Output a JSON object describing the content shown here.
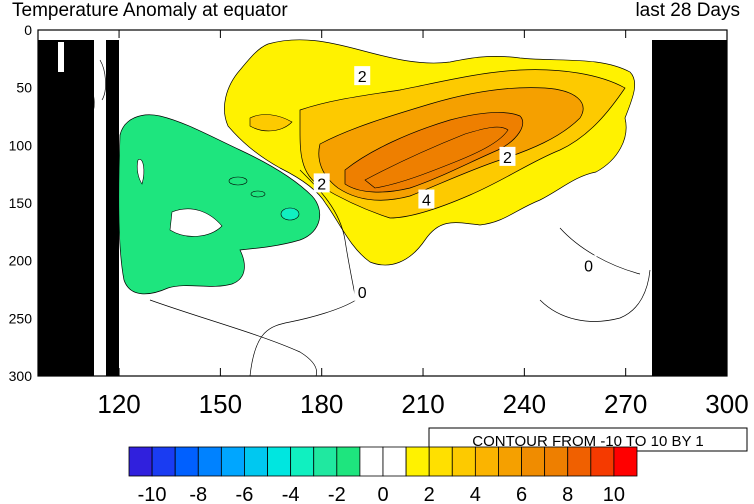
{
  "header": {
    "title_left": "Temperature Anomaly at equator",
    "title_right": "last 28 Days"
  },
  "contour_note": "CONTOUR FROM -10 TO 10 BY 1",
  "colors": {
    "orange_dark": "#ee7f00",
    "orange": "#f5a000",
    "orange_light": "#fdca00",
    "yellow": "#fff200",
    "green": "#1ee57e",
    "black_land": "#000000"
  },
  "chart_data": {
    "type": "heatmap",
    "title": "Temperature Anomaly at equator",
    "subtitle": "last 28 Days",
    "x_ticks": [
      120,
      150,
      180,
      210,
      240,
      270,
      300
    ],
    "y_ticks": [
      0,
      50,
      100,
      150,
      200,
      250,
      300
    ],
    "xlim": [
      96,
      300
    ],
    "ylim": [
      0,
      300
    ],
    "y_reversed": true,
    "contour_labels": [
      {
        "text": "2",
        "x": 192,
        "y": 40
      },
      {
        "text": "2",
        "x": 180,
        "y": 133
      },
      {
        "text": "4",
        "x": 211,
        "y": 147
      },
      {
        "text": "2",
        "x": 235,
        "y": 110
      },
      {
        "text": "0",
        "x": 192,
        "y": 227
      },
      {
        "text": "0",
        "x": 259,
        "y": 204
      }
    ],
    "colorbar": {
      "labels": [
        "-10",
        "-8",
        "-6",
        "-4",
        "-2",
        "0",
        "2",
        "4",
        "6",
        "8",
        "10"
      ],
      "colors": [
        "#3020dd",
        "#1a3cf2",
        "#0060ff",
        "#0082ff",
        "#00a6ff",
        "#00c8f0",
        "#00e6e0",
        "#10f0c0",
        "#20e8a0",
        "#1ee57e",
        "#ffffff",
        "#ffffff",
        "#fff200",
        "#ffe000",
        "#fdca00",
        "#fbb400",
        "#f5a000",
        "#f08c00",
        "#ee7f00",
        "#f06000",
        "#f53a00",
        "#ff0000"
      ]
    }
  }
}
